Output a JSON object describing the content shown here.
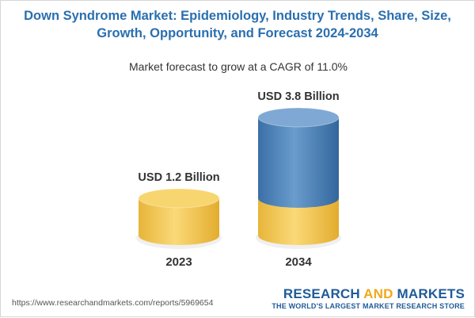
{
  "header": {
    "title_line1": "Down Syndrome Market: Epidemiology, Industry Trends, Share, Size,",
    "title_line2": "Growth, Opportunity, and Forecast 2024-2034",
    "subtitle": "Market forecast to grow at a CAGR of 11.0%"
  },
  "chart_data": {
    "type": "bar",
    "categories": [
      "2023",
      "2034"
    ],
    "values": [
      1.2,
      3.8
    ],
    "value_labels": [
      "USD 1.2 Billion",
      "USD 3.8 Billion"
    ],
    "unit": "USD Billion",
    "base_portion_of_2034": 1.2
  },
  "colors": {
    "title": "#2a6faf",
    "gold": "#f6cd58",
    "blue": "#4f86bd"
  },
  "footer": {
    "url": "https://www.researchandmarkets.com/reports/5969654",
    "brand_part1": "RESEARCH ",
    "brand_part2": "AND",
    "brand_part3": " MARKETS",
    "tagline": "THE WORLD'S LARGEST MARKET RESEARCH STORE"
  }
}
